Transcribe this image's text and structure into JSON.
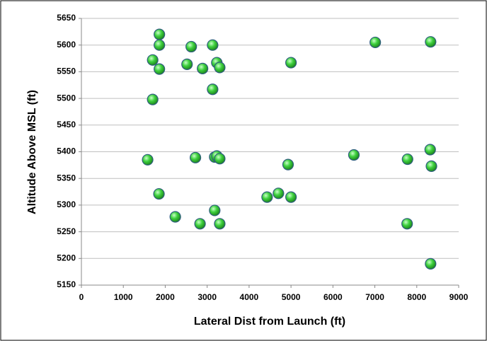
{
  "chart_data": {
    "type": "scatter",
    "x_label": "Lateral Dist from Launch (ft)",
    "y_label": "Altitude  Above MSL (ft)",
    "color": "#3ed13e",
    "x": [
      1860,
      1860,
      2620,
      3130,
      7010,
      8330,
      1700,
      1860,
      2520,
      2890,
      3230,
      3300,
      3130,
      1700,
      5000,
      1580,
      2720,
      3180,
      3230,
      3300,
      4930,
      6500,
      7780,
      8320,
      8350,
      1850,
      4430,
      4700,
      5000,
      2240,
      3180,
      2830,
      3300,
      7770,
      8330
    ],
    "values": [
      5620,
      5600,
      5597,
      5600,
      5605,
      5606,
      5572,
      5555,
      5564,
      5556,
      5567,
      5558,
      5517,
      5498,
      5567,
      5385,
      5389,
      5390,
      5392,
      5387,
      5376,
      5394,
      5386,
      5404,
      5373,
      5321,
      5315,
      5322,
      5315,
      5278,
      5290,
      5265,
      5265,
      5265,
      5190
    ],
    "xlim": [
      0,
      9000
    ],
    "xticks": [
      0,
      1000,
      2000,
      3000,
      4000,
      5000,
      6000,
      7000,
      8000,
      9000
    ],
    "ylim": [
      5150,
      5650
    ],
    "yticks": [
      5150,
      5200,
      5250,
      5300,
      5350,
      5400,
      5450,
      5500,
      5550,
      5600,
      5650
    ],
    "grid": true
  }
}
